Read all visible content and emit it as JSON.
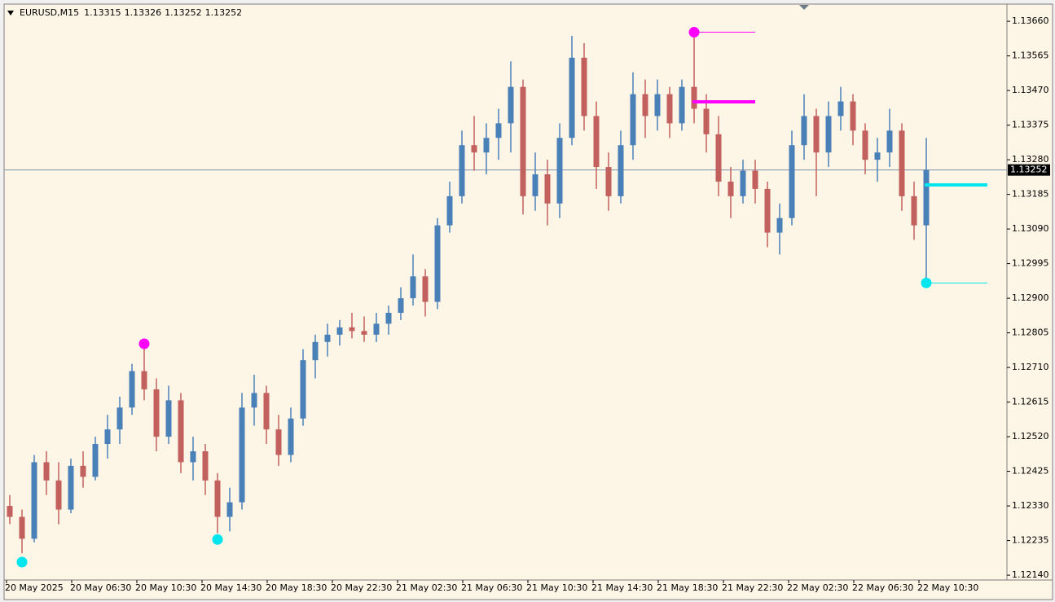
{
  "chart_data": {
    "type": "candlestick",
    "symbol": "EURUSD,M15",
    "header_prices": [
      1.13315,
      1.13326,
      1.13252,
      1.13252
    ],
    "bid": 1.13252,
    "up_color": "#4a80b8",
    "down_color": "#c2605e",
    "background": "#fdf5e6",
    "ylim": [
      1.12129,
      1.13705
    ],
    "yticks": [
      {
        "value": 1.1366,
        "label": "1.13660"
      },
      1.13565,
      {
        "value": 1.1347,
        "label": "1.13470"
      },
      1.13375,
      {
        "value": 1.1328,
        "label": "1.13280"
      },
      1.13185,
      {
        "value": 1.1309,
        "label": "1.13090"
      },
      1.12995,
      {
        "value": 1.129,
        "label": "1.12900"
      },
      1.12805,
      {
        "value": 1.1271,
        "label": "1.12710"
      },
      1.12615,
      {
        "value": 1.1252,
        "label": "1.12520"
      },
      1.12425,
      {
        "value": 1.1233,
        "label": "1.12330"
      },
      1.12235,
      {
        "value": 1.1214,
        "label": "1.12140"
      }
    ],
    "x_labels": [
      "20 May 2025",
      "20 May 06:30",
      "20 May 10:30",
      "20 May 14:30",
      "20 May 18:30",
      "20 May 22:30",
      "21 May 02:30",
      "21 May 06:30",
      "21 May 10:30",
      "21 May 14:30",
      "21 May 18:30",
      "21 May 22:30",
      "22 May 02:30",
      "22 May 06:30",
      "22 May 10:30"
    ],
    "candles": [
      [
        1.1233,
        1.1236,
        1.1228,
        1.123
      ],
      [
        1.123,
        1.1232,
        1.122,
        1.1224
      ],
      [
        1.1224,
        1.1247,
        1.1223,
        1.1245
      ],
      [
        1.1245,
        1.1248,
        1.1236,
        1.124
      ],
      [
        1.124,
        1.1245,
        1.1228,
        1.1232
      ],
      [
        1.1232,
        1.1246,
        1.1231,
        1.1244
      ],
      [
        1.1244,
        1.1248,
        1.1238,
        1.1241
      ],
      [
        1.1241,
        1.1252,
        1.124,
        1.125
      ],
      [
        1.125,
        1.1258,
        1.1246,
        1.1254
      ],
      [
        1.1254,
        1.1263,
        1.125,
        1.126
      ],
      [
        1.126,
        1.1272,
        1.1258,
        1.127
      ],
      [
        1.127,
        1.12775,
        1.1262,
        1.1265
      ],
      [
        1.1265,
        1.1268,
        1.1248,
        1.1252
      ],
      [
        1.1252,
        1.1266,
        1.125,
        1.1262
      ],
      [
        1.1262,
        1.1264,
        1.1242,
        1.1245
      ],
      [
        1.1245,
        1.1252,
        1.124,
        1.1248
      ],
      [
        1.1248,
        1.125,
        1.1236,
        1.124
      ],
      [
        1.124,
        1.1242,
        1.12255,
        1.123
      ],
      [
        1.123,
        1.1238,
        1.1226,
        1.1234
      ],
      [
        1.1234,
        1.1264,
        1.1232,
        1.126
      ],
      [
        1.126,
        1.1269,
        1.1255,
        1.1264
      ],
      [
        1.1264,
        1.1266,
        1.125,
        1.1254
      ],
      [
        1.1254,
        1.1258,
        1.1244,
        1.1247
      ],
      [
        1.1247,
        1.126,
        1.1245,
        1.1257
      ],
      [
        1.1257,
        1.1276,
        1.1255,
        1.1273
      ],
      [
        1.1273,
        1.128,
        1.1268,
        1.1278
      ],
      [
        1.1278,
        1.1283,
        1.1274,
        1.128
      ],
      [
        1.128,
        1.1284,
        1.1277,
        1.1282
      ],
      [
        1.1282,
        1.1286,
        1.1279,
        1.1281
      ],
      [
        1.1281,
        1.1285,
        1.1278,
        1.128
      ],
      [
        1.128,
        1.1286,
        1.1278,
        1.1283
      ],
      [
        1.1283,
        1.1288,
        1.128,
        1.1286
      ],
      [
        1.1286,
        1.1293,
        1.1284,
        1.129
      ],
      [
        1.129,
        1.1302,
        1.1288,
        1.1296
      ],
      [
        1.1296,
        1.1298,
        1.1285,
        1.1289
      ],
      [
        1.1289,
        1.1312,
        1.1287,
        1.131
      ],
      [
        1.131,
        1.1322,
        1.1308,
        1.1318
      ],
      [
        1.1318,
        1.1336,
        1.1316,
        1.1332
      ],
      [
        1.1332,
        1.134,
        1.1325,
        1.133
      ],
      [
        1.133,
        1.1338,
        1.1324,
        1.1334
      ],
      [
        1.1334,
        1.1342,
        1.1328,
        1.1338
      ],
      [
        1.1338,
        1.1355,
        1.133,
        1.1348
      ],
      [
        1.1348,
        1.135,
        1.1313,
        1.1318
      ],
      [
        1.1318,
        1.133,
        1.1314,
        1.1324
      ],
      [
        1.1324,
        1.1328,
        1.131,
        1.1316
      ],
      [
        1.1316,
        1.1338,
        1.1312,
        1.1334
      ],
      [
        1.1334,
        1.1362,
        1.1332,
        1.1356
      ],
      [
        1.1356,
        1.136,
        1.1336,
        1.134
      ],
      [
        1.134,
        1.1344,
        1.132,
        1.1326
      ],
      [
        1.1326,
        1.133,
        1.1314,
        1.1318
      ],
      [
        1.1318,
        1.1336,
        1.1316,
        1.1332
      ],
      [
        1.1332,
        1.1352,
        1.1328,
        1.1346
      ],
      [
        1.1346,
        1.135,
        1.1334,
        1.134
      ],
      [
        1.134,
        1.135,
        1.1336,
        1.1346
      ],
      [
        1.1346,
        1.1348,
        1.1334,
        1.1338
      ],
      [
        1.1338,
        1.135,
        1.1336,
        1.1348
      ],
      [
        1.1348,
        1.13635,
        1.1338,
        1.1342
      ],
      [
        1.1342,
        1.1346,
        1.133,
        1.1335
      ],
      [
        1.1335,
        1.134,
        1.1318,
        1.1322
      ],
      [
        1.1322,
        1.1326,
        1.1312,
        1.1318
      ],
      [
        1.1318,
        1.1328,
        1.1316,
        1.1325
      ],
      [
        1.1325,
        1.1328,
        1.1316,
        1.132
      ],
      [
        1.132,
        1.1322,
        1.1304,
        1.1308
      ],
      [
        1.1308,
        1.1316,
        1.1302,
        1.1312
      ],
      [
        1.1312,
        1.1336,
        1.131,
        1.1332
      ],
      [
        1.1332,
        1.1346,
        1.1328,
        1.134
      ],
      [
        1.134,
        1.1342,
        1.1318,
        1.133
      ],
      [
        1.133,
        1.1344,
        1.1326,
        1.134
      ],
      [
        1.134,
        1.1348,
        1.1336,
        1.1344
      ],
      [
        1.1344,
        1.1346,
        1.1332,
        1.1336
      ],
      [
        1.1336,
        1.1338,
        1.1324,
        1.1328
      ],
      [
        1.1328,
        1.1334,
        1.1322,
        1.133
      ],
      [
        1.133,
        1.1342,
        1.1326,
        1.1336
      ],
      [
        1.1336,
        1.1338,
        1.1314,
        1.1318
      ],
      [
        1.1318,
        1.1322,
        1.1306,
        1.131
      ],
      [
        1.131,
        1.1334,
        1.12947,
        1.13252
      ]
    ],
    "swing_points": [
      {
        "candle": 1,
        "value": 1.12176,
        "color": "#00e5ee"
      },
      {
        "candle": 11,
        "value": 1.12775,
        "color": "#ff00ff"
      },
      {
        "candle": 17,
        "value": 1.12238,
        "color": "#00e5ee"
      },
      {
        "candle": 56,
        "value": 1.1363,
        "color": "#ff00ff"
      },
      {
        "candle": 75,
        "value": 1.12942,
        "color": "#00e5ee"
      }
    ],
    "levels": [
      {
        "candle": 56,
        "value": 1.1363,
        "color": "#ff00ff",
        "thick": false
      },
      {
        "candle": 56,
        "value": 1.13439,
        "color": "#ff00ff",
        "thick": true
      },
      {
        "candle": 75,
        "value": 1.12942,
        "color": "#00e5ee",
        "thick": false
      },
      {
        "candle": 75,
        "value": 1.13211,
        "color": "#00e5ee",
        "thick": true
      }
    ]
  }
}
